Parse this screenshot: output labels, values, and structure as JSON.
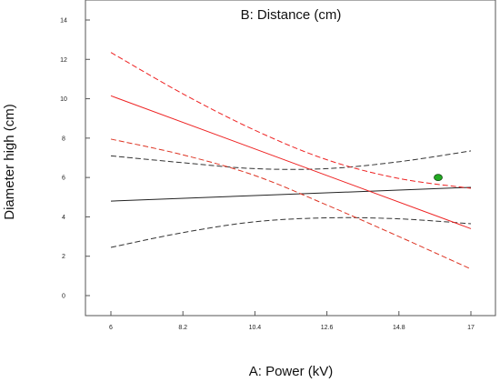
{
  "chart_data": {
    "type": "line",
    "title": "B: Distance (cm)",
    "xlabel": "A: Power (kV)",
    "ylabel": "Diameter high (cm)",
    "xlim": [
      6,
      17
    ],
    "ylim": [
      0,
      14
    ],
    "x_ticks": [
      "6",
      "8.2",
      "10.4",
      "12.6",
      "14.8",
      "17"
    ],
    "y_ticks": [
      "0",
      "2",
      "4",
      "6",
      "8",
      "10",
      "12",
      "14"
    ],
    "grid": false,
    "series": [
      {
        "key": "black-fit",
        "color": "#222222",
        "style": "solid",
        "x": [
          6,
          17
        ],
        "y": [
          4.8,
          5.5
        ]
      },
      {
        "key": "black-upper",
        "color": "#333333",
        "style": "dashed",
        "x": [
          6,
          8.2,
          10.4,
          12.6,
          14.8,
          17
        ],
        "y": [
          7.1,
          6.75,
          6.45,
          6.45,
          6.8,
          7.35
        ]
      },
      {
        "key": "black-lower",
        "color": "#333333",
        "style": "dashed",
        "x": [
          6,
          8.2,
          10.4,
          12.6,
          14.8,
          17
        ],
        "y": [
          2.45,
          3.2,
          3.75,
          3.95,
          3.9,
          3.65
        ]
      },
      {
        "key": "red-fit",
        "color": "#ee2222",
        "style": "solid",
        "x": [
          6,
          17
        ],
        "y": [
          10.15,
          3.4
        ]
      },
      {
        "key": "red-upper",
        "color": "#ee2222",
        "style": "dashed",
        "x": [
          6,
          8.2,
          10.4,
          12.6,
          14.8,
          17
        ],
        "y": [
          12.35,
          10.25,
          8.4,
          6.9,
          5.95,
          5.45
        ]
      },
      {
        "key": "red-lower",
        "color": "#dd3322",
        "style": "dashed",
        "x": [
          6,
          8.2,
          10.4,
          12.6,
          14.8,
          17
        ],
        "y": [
          7.95,
          7.15,
          6.1,
          4.6,
          3.0,
          1.35
        ]
      }
    ],
    "points": [
      {
        "x": 16.0,
        "y": 6.0,
        "color": "#22aa22"
      }
    ]
  }
}
